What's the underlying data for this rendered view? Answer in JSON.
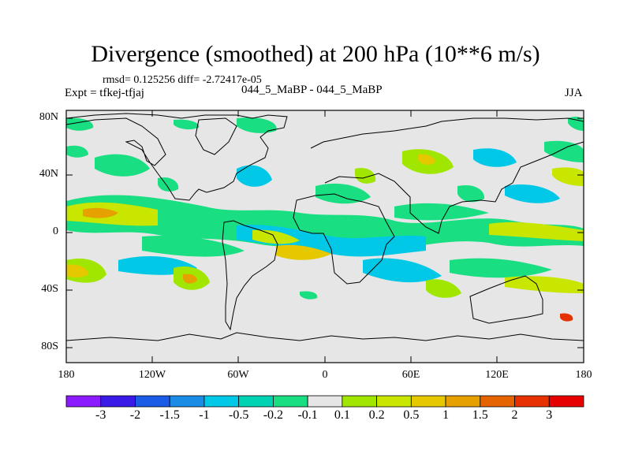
{
  "header": {
    "title": "Divergence (smoothed) at 200 hPa (10**6 m/s)",
    "stats": "rmsd= 0.125256 diff= -2.72417e-05",
    "experiment": "Expt = tfkej-tfjaj",
    "runs": "044_5_MaBP - 044_5_MaBP",
    "season": "JJA"
  },
  "map": {
    "lat_labels": [
      "80N",
      "40N",
      "0",
      "40S",
      "80S"
    ],
    "lon_labels": [
      "180",
      "120W",
      "60W",
      "0",
      "60E",
      "120E",
      "180"
    ],
    "background_color": "#e6e6e6"
  },
  "colorbar": {
    "labels": [
      "-3",
      "-2",
      "-1.5",
      "-1",
      "-0.5",
      "-0.2",
      "-0.1",
      "0.1",
      "0.2",
      "0.5",
      "1",
      "1.5",
      "2",
      "3"
    ],
    "colors": [
      "#8c1aff",
      "#3a1ae6",
      "#1a5ce6",
      "#1a8ce6",
      "#00c8e6",
      "#00d2b4",
      "#1ade82",
      "#e6e6e6",
      "#a0e600",
      "#c8e600",
      "#e6c800",
      "#e6a000",
      "#e66400",
      "#e63200",
      "#e60000"
    ]
  }
}
